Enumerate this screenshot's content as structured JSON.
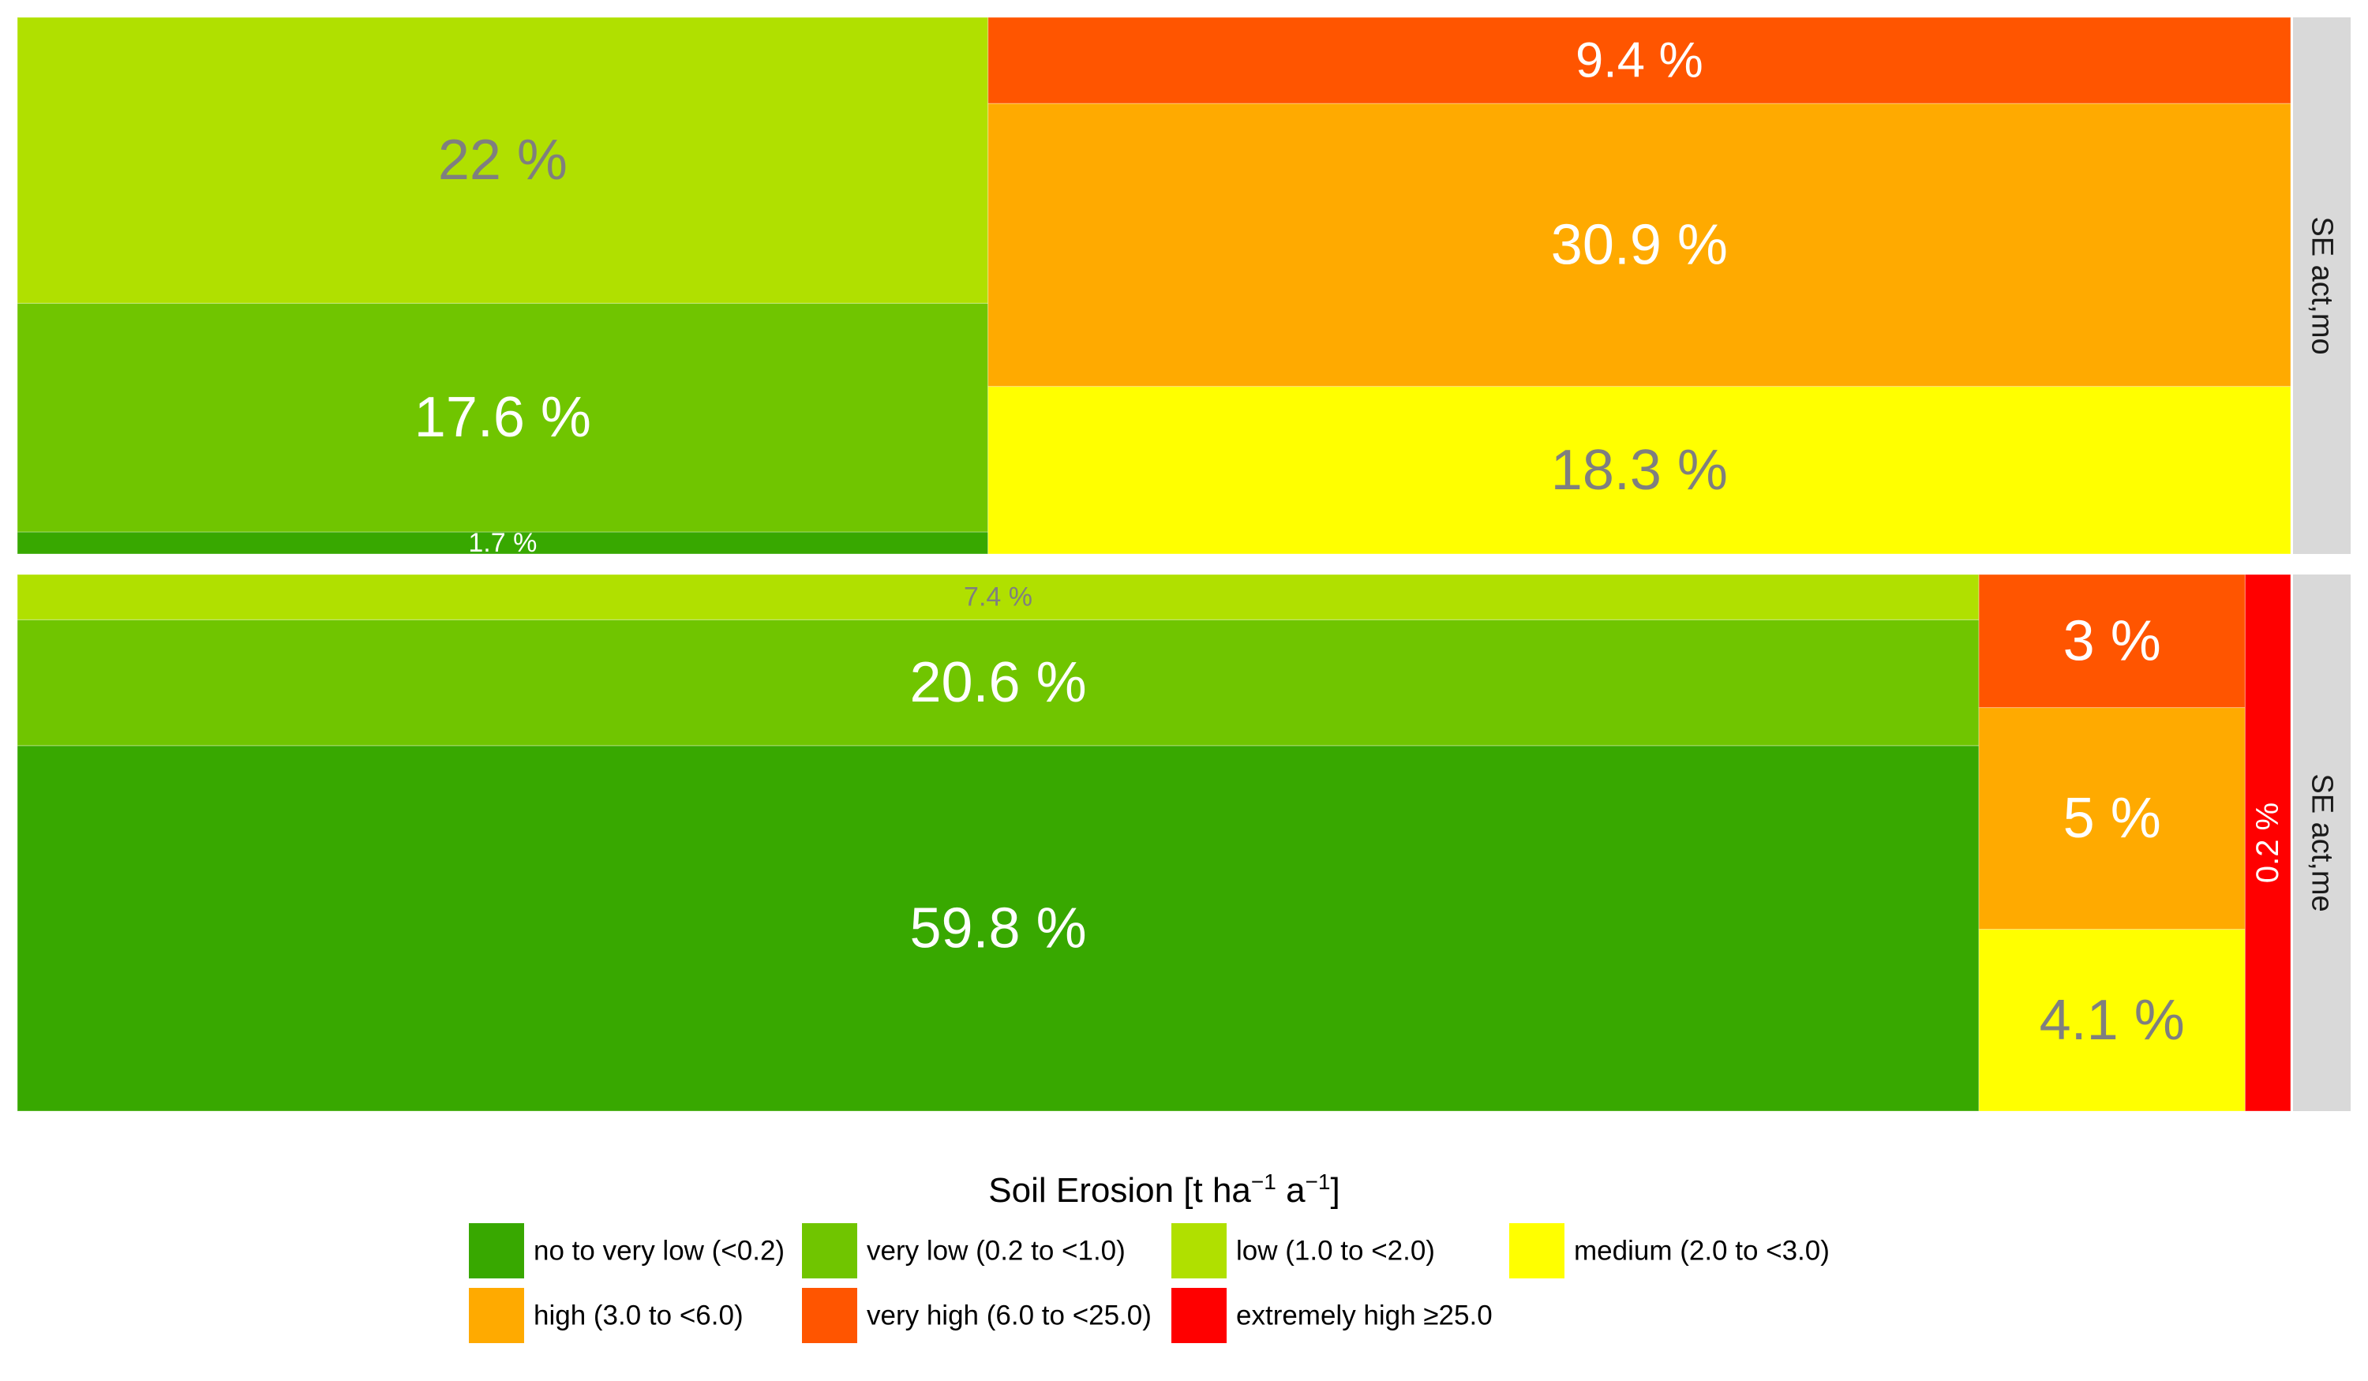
{
  "chart_data": {
    "type": "mosaic",
    "panels": [
      {
        "strip_label": "SE act,mo",
        "columns": [
          {
            "width_share": 42.7,
            "segments": [
              {
                "category": "no to very low (<0.2)",
                "value": 1.7,
                "label": "1.7 %"
              },
              {
                "category": "very low (0.2 to <1.0)",
                "value": 17.6,
                "label": "17.6 %"
              },
              {
                "category": "low (1.0 to <2.0)",
                "value": 22,
                "label": "22 %"
              }
            ]
          },
          {
            "width_share": 57.3,
            "segments": [
              {
                "category": "medium (2.0 to <3.0)",
                "value": 18.3,
                "label": "18.3 %"
              },
              {
                "category": "high (3.0 to <6.0)",
                "value": 30.9,
                "label": "30.9 %"
              },
              {
                "category": "very high (6.0 to <25.0)",
                "value": 9.4,
                "label": "9.4 %"
              }
            ]
          }
        ]
      },
      {
        "strip_label": "SE act,me",
        "columns": [
          {
            "width_share": 86.2,
            "segments": [
              {
                "category": "no to very low (<0.2)",
                "value": 59.8,
                "label": "59.8 %"
              },
              {
                "category": "very low (0.2 to <1.0)",
                "value": 20.6,
                "label": "20.6 %"
              },
              {
                "category": "low (1.0 to <2.0)",
                "value": 7.4,
                "label": "7.4 %"
              }
            ]
          },
          {
            "width_share": 11.7,
            "segments": [
              {
                "category": "medium (2.0 to <3.0)",
                "value": 4.1,
                "label": "4.1 %"
              },
              {
                "category": "high (3.0 to <6.0)",
                "value": 5,
                "label": "5 %"
              },
              {
                "category": "very high (6.0 to <25.0)",
                "value": 3,
                "label": "3 %"
              }
            ]
          },
          {
            "width_share": 2.0,
            "segments": [
              {
                "category": "extremely high ≥25.0",
                "value": 0.2,
                "label": "0.2 %"
              }
            ]
          }
        ]
      }
    ],
    "legend": {
      "title": "Soil Erosion [t ha⁻¹ a⁻¹]",
      "title_base": "Soil Erosion [t ha",
      "title_sup1": "−1",
      "title_mid": " a",
      "title_sup2": "−1",
      "title_end": "]",
      "position": "bottom",
      "items": [
        {
          "label": "no to very low (<0.2)",
          "color": "#38a800"
        },
        {
          "label": "very low (0.2 to <1.0)",
          "color": "#70c500"
        },
        {
          "label": "low (1.0 to <2.0)",
          "color": "#b0e000"
        },
        {
          "label": "medium (2.0 to <3.0)",
          "color": "#ffff00"
        },
        {
          "label": "high (3.0 to <6.0)",
          "color": "#ffaa00"
        },
        {
          "label": "very high (6.0 to <25.0)",
          "color": "#ff5500"
        },
        {
          "label": "extremely high ≥25.0",
          "color": "#ff0000"
        }
      ]
    },
    "label_colors": {
      "no to very low (<0.2)": "#ffffff",
      "very low (0.2 to <1.0)": "#ffffff",
      "low (1.0 to <2.0)": "#7f7f7f",
      "medium (2.0 to <3.0)": "#7f7f7f",
      "high (3.0 to <6.0)": "#ffffff",
      "very high (6.0 to <25.0)": "#ffffff",
      "extremely high ≥25.0": "#ffffff"
    }
  }
}
